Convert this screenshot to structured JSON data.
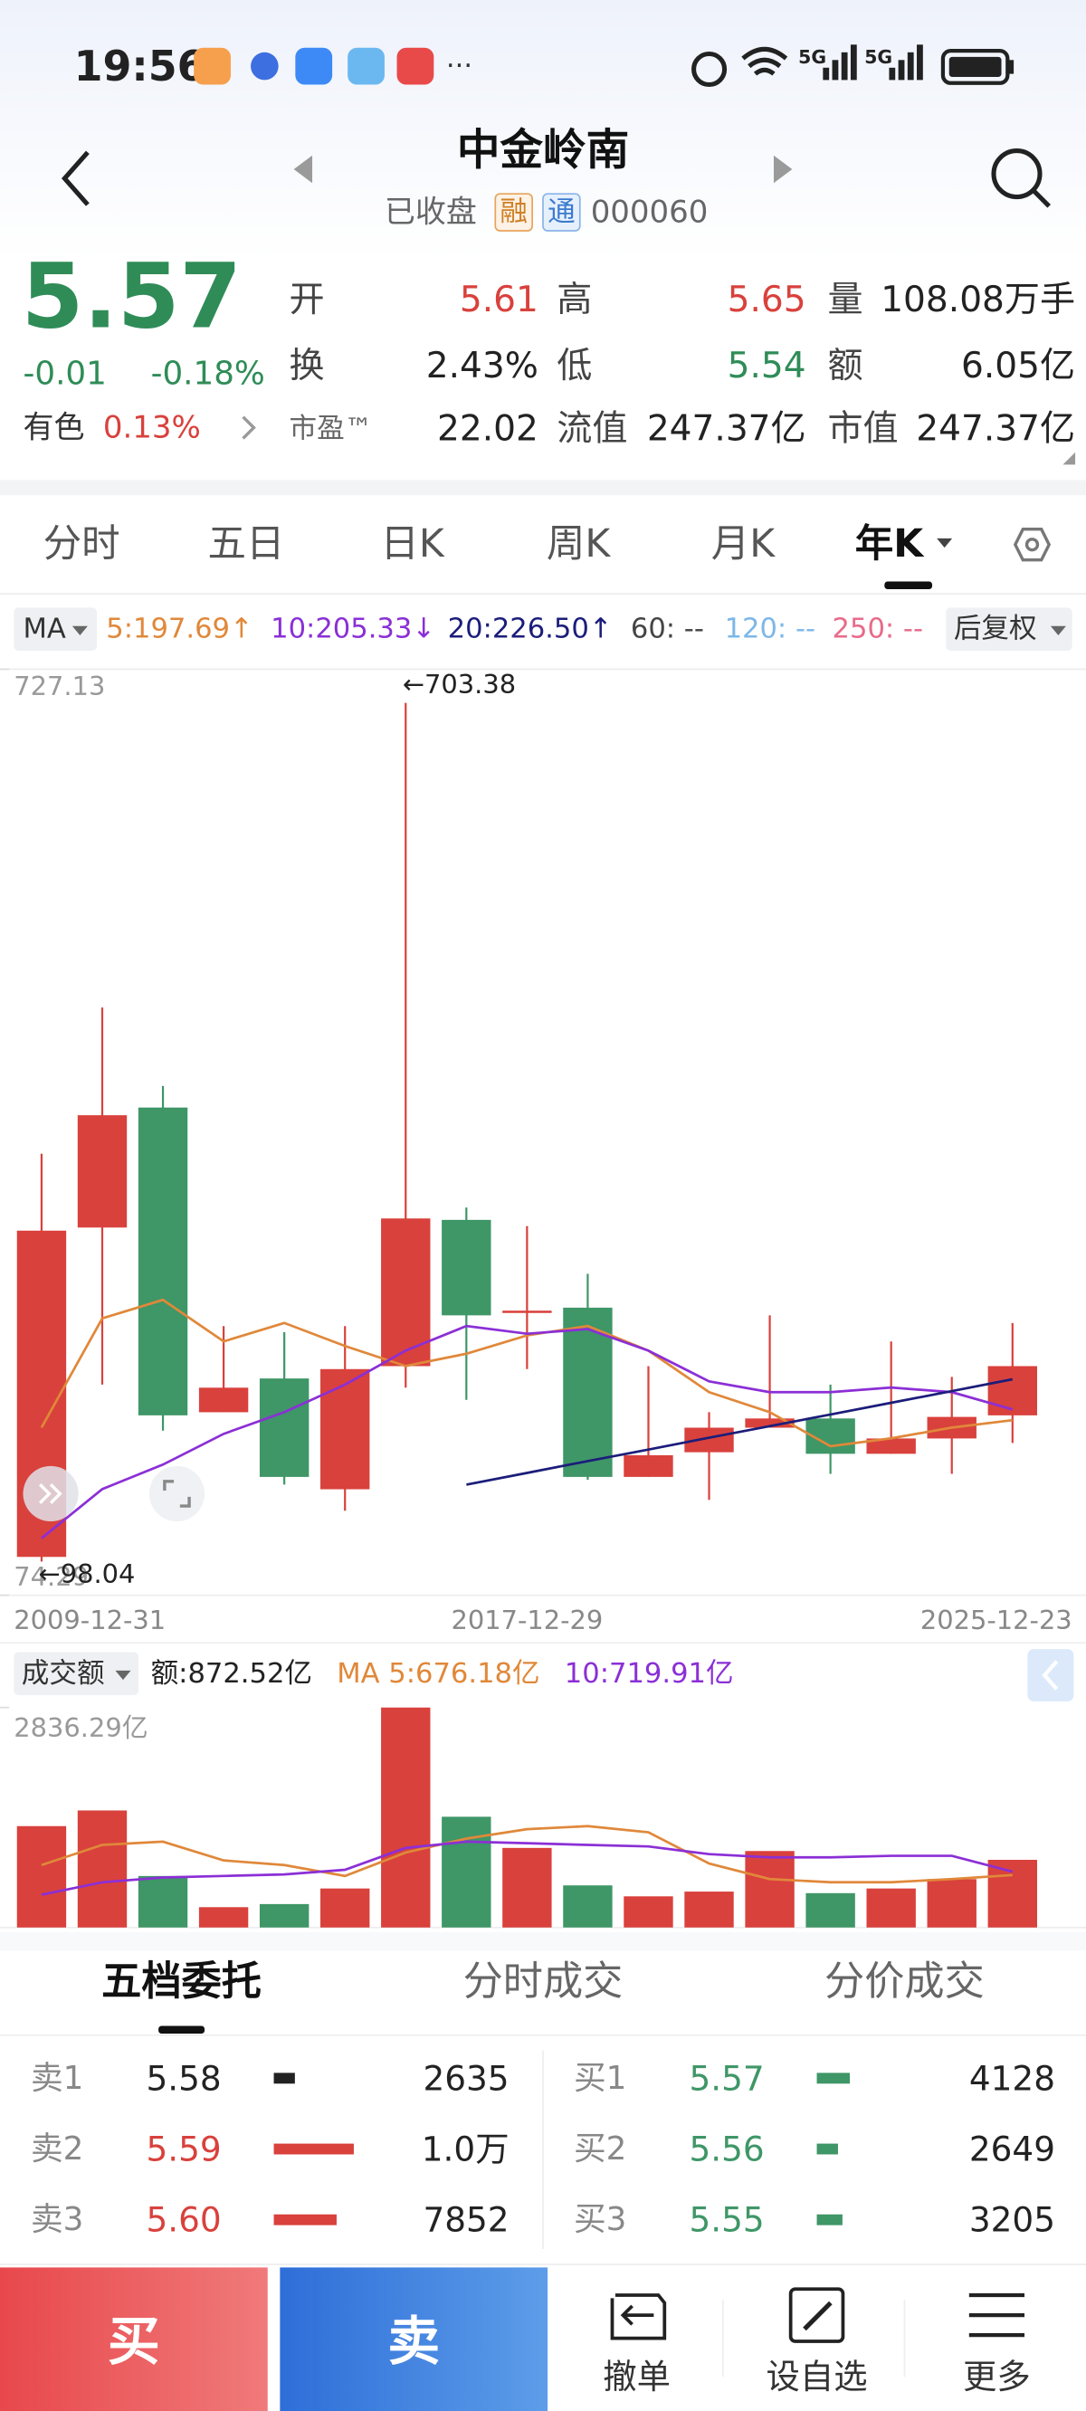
{
  "status_bar": {
    "time": "19:56",
    "more": "···",
    "network": [
      "5G",
      "5G"
    ]
  },
  "header": {
    "title": "中金岭南",
    "status": "已收盘",
    "badges": [
      "融",
      "通"
    ],
    "code": "000060"
  },
  "quote": {
    "price": "5.57",
    "change": "-0.01",
    "change_pct": "-0.18%",
    "sector": "有色",
    "sector_pct": "0.13%",
    "fields": [
      {
        "label": "开",
        "value": "5.61",
        "color": "#d9413c"
      },
      {
        "label": "高",
        "value": "5.65",
        "color": "#d9413c"
      },
      {
        "label": "量",
        "value": "108.08万手",
        "color": "#222222"
      },
      {
        "label": "换",
        "value": "2.43%",
        "color": "#222222"
      },
      {
        "label": "低",
        "value": "5.54",
        "color": "#2f8c57"
      },
      {
        "label": "额",
        "value": "6.05亿",
        "color": "#222222"
      },
      {
        "label": "市盈™",
        "value": "22.02",
        "color": "#222222"
      },
      {
        "label": "流值",
        "value": "247.37亿",
        "color": "#222222"
      },
      {
        "label": "市值",
        "value": "247.37亿",
        "color": "#222222"
      }
    ]
  },
  "tabs": {
    "items": [
      "分时",
      "五日",
      "日K",
      "周K",
      "月K",
      "年K"
    ],
    "active": 5
  },
  "chart_data": [
    {
      "type": "candlestick",
      "ma_label": "MA",
      "adjust": "后复权",
      "categories": [
        "2009-12-31",
        null,
        null,
        null,
        null,
        null,
        null,
        null,
        "2017-12-29",
        null,
        null,
        null,
        null,
        null,
        null,
        null,
        "2025-12-23"
      ],
      "open": [
        101.3,
        333.5,
        418.1,
        203.3,
        227.1,
        149.0,
        235.8,
        338.9,
        273.8,
        277.0,
        157.7,
        175.1,
        192.4,
        198.9,
        174.0,
        184.8,
        201.1
      ],
      "high": [
        385.6,
        488.6,
        433.3,
        264.0,
        259.7,
        264.0,
        703.38,
        347.6,
        334.5,
        300.9,
        235.8,
        203.3,
        271.6,
        222.8,
        253.2,
        228.2,
        266.2
      ],
      "low": [
        98.04,
        222.8,
        190.3,
        203.3,
        152.3,
        133.9,
        220.6,
        212.0,
        233.7,
        155.6,
        157.7,
        141.5,
        192.4,
        159.9,
        174.0,
        159.9,
        181.6
      ],
      "close": [
        331.3,
        412.7,
        201.1,
        220.6,
        157.7,
        233.7,
        339.9,
        271.6,
        274.9,
        157.7,
        173.0,
        192.4,
        198.9,
        174.0,
        184.8,
        200.0,
        235.8
      ],
      "up_color": "#d9413c",
      "down_color": "#3f9667",
      "ylim": [
        74.29,
        727.13
      ],
      "yticks": [
        74.29,
        727.13
      ],
      "annotations": {
        "max": "←703.38",
        "min": "←98.04"
      },
      "series": [
        {
          "name": "5:197.69↑",
          "color": "#e0883a",
          "values": [
            192.5,
            269.5,
            282.5,
            253.2,
            266.2,
            250.0,
            235.9,
            244.5,
            257.5,
            264.1,
            246.7,
            217.4,
            203.3,
            179.4,
            184.9,
            192.5,
            197.69
          ]
        },
        {
          "name": "10:205.33↓",
          "color": "#8b2fd6",
          "values": [
            114.4,
            149.1,
            166.4,
            188.1,
            203.3,
            222.8,
            246.7,
            264.1,
            258.6,
            261.9,
            246.7,
            225.0,
            217.4,
            217.4,
            220.7,
            217.4,
            205.33
          ]
        },
        {
          "name": "20:226.50↑",
          "color": "#1b1d7a",
          "values": [
            null,
            null,
            null,
            null,
            null,
            null,
            null,
            152.3,
            160.5,
            168.8,
            177.0,
            185.3,
            193.5,
            201.7,
            210.0,
            218.2,
            226.5
          ]
        }
      ],
      "inactive_series": [
        {
          "name": "60: --",
          "color": "#444444"
        },
        {
          "name": "120: --",
          "color": "#7db7e8"
        },
        {
          "name": "250: --",
          "color": "#e86a8a"
        }
      ]
    },
    {
      "type": "bar",
      "title": "成交额",
      "value_label": "额:872.52亿",
      "values": [
        1307,
        1509,
        664,
        262,
        302,
        503,
        2836.29,
        1428,
        1026,
        543,
        402,
        463,
        986,
        443,
        503,
        624,
        872.52
      ],
      "ylim": [
        0,
        2836.29
      ],
      "yticks": [
        {
          "value": 2836.29,
          "label": "2836.29亿"
        }
      ],
      "series": [
        {
          "name": "MA 5:676.18亿",
          "color": "#e0883a",
          "values": [
            805,
            1066,
            1106,
            865,
            805,
            664,
            966,
            1147,
            1267,
            1307,
            1227,
            825,
            624,
            583,
            583,
            624,
            676.18
          ]
        },
        {
          "name": "10:719.91亿",
          "color": "#8b2fd6",
          "values": [
            422,
            583,
            644,
            664,
            684,
            744,
            1026,
            1106,
            1086,
            1066,
            1046,
            946,
            905,
            905,
            925,
            925,
            719.91
          ]
        }
      ]
    }
  ],
  "order_book": {
    "tabs": [
      "五档委托",
      "分时成交",
      "分价成交"
    ],
    "active": 0,
    "sell": [
      {
        "level": "卖1",
        "price": "5.58",
        "volume": 2635,
        "color": "#222222"
      },
      {
        "level": "卖2",
        "price": "5.59",
        "volume": 10000,
        "volume_label": "1.0万",
        "color": "#d9413c"
      },
      {
        "level": "卖3",
        "price": "5.60",
        "volume": 7852,
        "color": "#d9413c"
      }
    ],
    "buy": [
      {
        "level": "买1",
        "price": "5.57",
        "volume": 4128,
        "color": "#3f9667"
      },
      {
        "level": "买2",
        "price": "5.56",
        "volume": 2649,
        "color": "#3f9667"
      },
      {
        "level": "买3",
        "price": "5.55",
        "volume": 3205,
        "color": "#3f9667"
      }
    ]
  },
  "bottom_bar": {
    "buy": "买",
    "sell": "卖",
    "actions": [
      "撤单",
      "设自选",
      "更多"
    ]
  }
}
